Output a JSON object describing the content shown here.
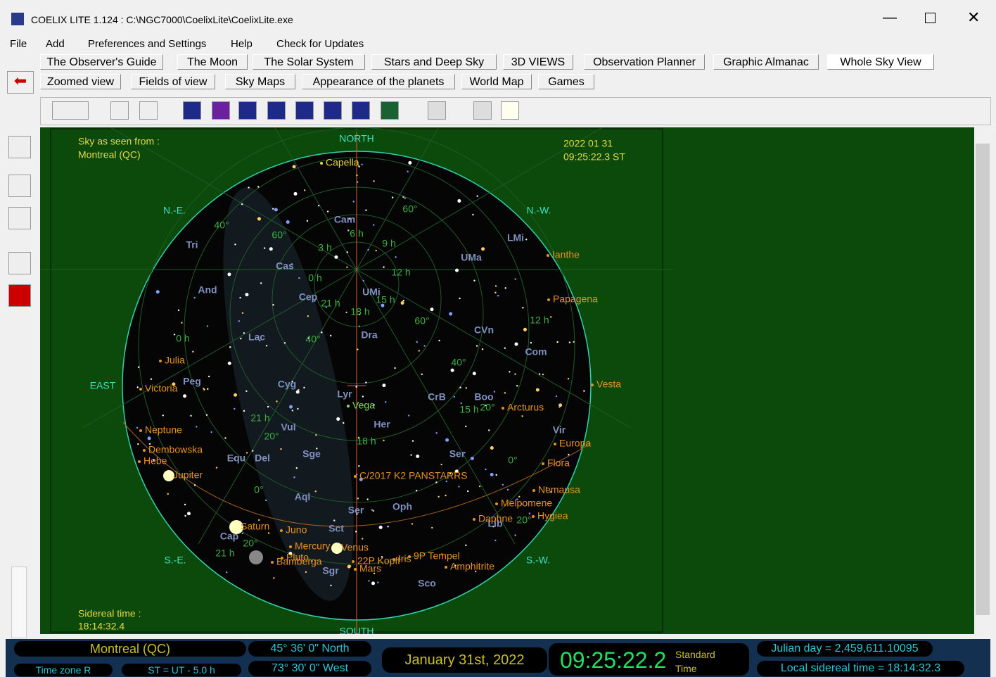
{
  "window": {
    "title": "COELIX LITE 1.124 : C:\\NGC7000\\CoelixLite\\CoelixLite.exe"
  },
  "menu": [
    "File",
    "Add",
    "Preferences and Settings",
    "Help",
    "Check for Updates"
  ],
  "tabs_row1": [
    "The Observer's Guide",
    "The Moon",
    "The Solar System",
    "Stars and Deep Sky",
    "3D VIEWS",
    "Observation Planner",
    "Graphic Almanac",
    "Whole Sky View"
  ],
  "tabs_row2": [
    "Zoomed view",
    "Fields of view",
    "Sky Maps",
    "Appearance of the planets",
    "World Map",
    "Games"
  ],
  "sky": {
    "location_heading": "Sky as seen from :",
    "location": "Montreal (QC)",
    "date": "2022 01 31",
    "time": "09:25:22.3 ST",
    "sidereal_heading": "Sidereal time :",
    "sidereal": "18:14:32.4",
    "directions": [
      "NORTH",
      "N.-E.",
      "N.-W.",
      "EAST",
      "S.-E.",
      "S.-W.",
      "SOUTH"
    ],
    "constellations": [
      "Cam",
      "LMi",
      "UMa",
      "Cas",
      "Tri",
      "And",
      "Cep",
      "UMi",
      "Dra",
      "CVn",
      "Com",
      "Lac",
      "Peg",
      "Cyg",
      "Lyr",
      "CrB",
      "Boo",
      "Vul",
      "Her",
      "Vir",
      "Sge",
      "Ser",
      "Equ",
      "Del",
      "Aql",
      "Oph",
      "Lib",
      "Sct",
      "Ser",
      "Cap",
      "Sgr",
      "Sco"
    ],
    "objects": [
      "Capella",
      "Ianthe",
      "Papagena",
      "Vesta",
      "Julia",
      "Victoria",
      "Arcturus",
      "Vega",
      "Neptune",
      "Dembowska",
      "Hebe",
      "Jupiter",
      "Europa",
      "Flora",
      "C/2017 K2 PANSTARRS",
      "Nemausa",
      "Melpomene",
      "Hygiea",
      "Daphne",
      "Saturn",
      "Juno",
      "Mercury",
      "Venus",
      "Pluto",
      "Bamberga",
      "Mars",
      "Amphitrite",
      "Iris",
      "9P Tempel",
      "22P Kopff"
    ],
    "grid_labels": [
      "6 h",
      "3 h",
      "9 h",
      "12 h",
      "0 h",
      "21 h",
      "18 h",
      "15 h",
      "0 h",
      "12 h",
      "21 h",
      "18 h",
      "15 h",
      "60°",
      "60°",
      "60°",
      "40°",
      "40°",
      "40°",
      "20°",
      "20°",
      "20°",
      "20°",
      "0°",
      "0°",
      "21 h"
    ]
  },
  "status": {
    "city": "Montreal (QC)",
    "time_zone": "Time zone R",
    "st_offset": "ST = UT - 5.0 h",
    "latitude": "45° 36' 0\" North",
    "longitude": "73° 30' 0\" West",
    "date": "January 31st, 2022",
    "clock": "09:25:22.2",
    "clock_kind_1": "Standard",
    "clock_kind_2": "Time",
    "julian_day": "Julian day = 2,459,611.10095",
    "local_sidereal": "Local sidereal time = 18:14:32.3"
  }
}
